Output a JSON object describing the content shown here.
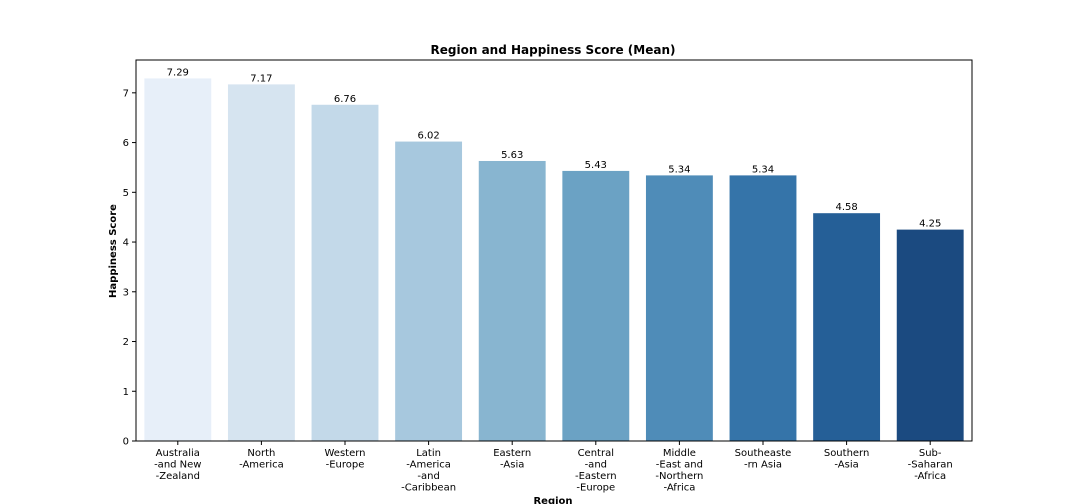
{
  "chart_data": {
    "type": "bar",
    "title": "Region and Happiness Score (Mean)",
    "xlabel": "Region",
    "ylabel": "Happiness Score",
    "ylim": [
      0,
      7.66
    ],
    "yticks": [
      0,
      1,
      2,
      3,
      4,
      5,
      6,
      7
    ],
    "grid": false,
    "categories": [
      [
        "Australia",
        "-and New",
        "-Zealand"
      ],
      [
        "North",
        "-America"
      ],
      [
        "Western",
        "-Europe"
      ],
      [
        "Latin",
        "-America",
        "-and",
        "-Caribbean"
      ],
      [
        "Eastern",
        "-Asia"
      ],
      [
        "Central",
        "-and",
        "-Eastern",
        "-Europe"
      ],
      [
        "Middle",
        "-East and",
        "-Northern",
        "-Africa"
      ],
      [
        "Southeaste",
        "-rn Asia"
      ],
      [
        "Southern",
        "-Asia"
      ],
      [
        "Sub-",
        "-Saharan",
        "-Africa"
      ]
    ],
    "values": [
      7.29,
      7.17,
      6.76,
      6.02,
      5.63,
      5.43,
      5.34,
      5.34,
      4.58,
      4.25
    ],
    "value_labels": [
      "7.29",
      "7.17",
      "6.76",
      "6.02",
      "5.63",
      "5.43",
      "5.34",
      "5.34",
      "4.58",
      "4.25"
    ],
    "colors": [
      "#e7eff9",
      "#d6e4f0",
      "#c3d9e9",
      "#a7c8de",
      "#88b5d0",
      "#6ba2c4",
      "#4f8cb8",
      "#3574a9",
      "#255f97",
      "#1b4a80"
    ]
  }
}
